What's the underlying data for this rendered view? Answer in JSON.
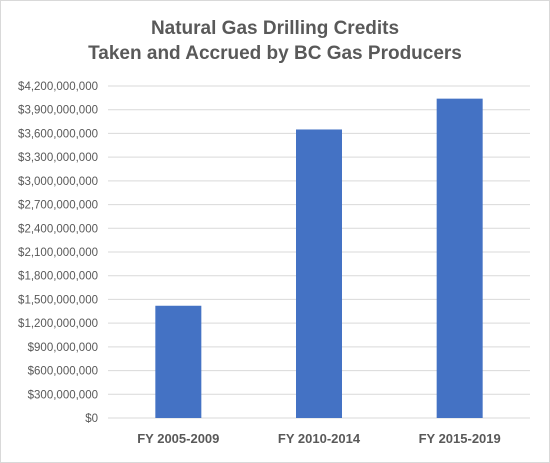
{
  "chart_data": {
    "type": "bar",
    "title_lines": [
      "Natural Gas Drilling Credits",
      "Taken and Accrued by BC Gas Producers"
    ],
    "categories": [
      "FY 2005-2009",
      "FY 2010-2014",
      "FY 2015-2019"
    ],
    "values": [
      1420000000,
      3650000000,
      4040000000
    ],
    "ylim": [
      0,
      4200000000
    ],
    "yticks": [
      0,
      300000000,
      600000000,
      900000000,
      1200000000,
      1500000000,
      1800000000,
      2100000000,
      2400000000,
      2700000000,
      3000000000,
      3300000000,
      3600000000,
      3900000000,
      4200000000
    ],
    "ytick_labels": [
      "$0",
      "$300,000,000",
      "$600,000,000",
      "$900,000,000",
      "$1,200,000,000",
      "$1,500,000,000",
      "$1,800,000,000",
      "$2,100,000,000",
      "$2,400,000,000",
      "$2,700,000,000",
      "$3,000,000,000",
      "$3,300,000,000",
      "$3,600,000,000",
      "$3,900,000,000",
      "$4,200,000,000"
    ],
    "xlabel": "",
    "ylabel": "",
    "grid": true,
    "bar_color": "#4472c4",
    "grid_color": "#d9d9d9"
  }
}
